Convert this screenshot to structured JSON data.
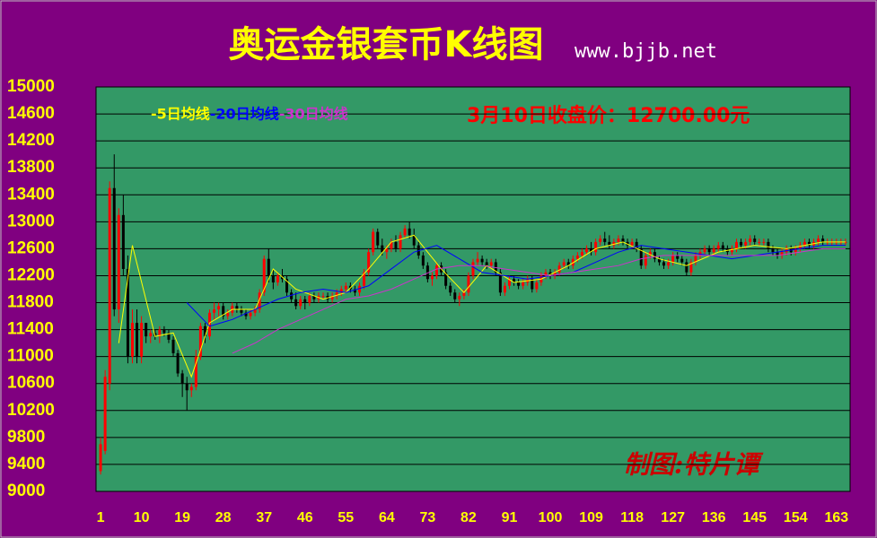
{
  "chart_data": {
    "type": "candlestick",
    "title": "奥运金银套币K线图",
    "subtitle": "www.bjjb.net",
    "annotation": "3月10日收盘价：12700.00元",
    "watermark": "制图:特片谭",
    "ylim": [
      9000,
      15000
    ],
    "yticks": [
      9000,
      9400,
      9800,
      10200,
      10600,
      11000,
      11400,
      11800,
      12200,
      12600,
      13000,
      13400,
      13800,
      14200,
      14600,
      15000
    ],
    "xlim": [
      0,
      166
    ],
    "xticks": [
      1,
      10,
      19,
      28,
      37,
      46,
      55,
      64,
      73,
      82,
      91,
      100,
      109,
      118,
      127,
      136,
      145,
      154,
      163
    ],
    "grid": true,
    "up_color": "#ff0000",
    "down_color": "#000000",
    "candles": [
      [
        9300,
        9800,
        9250,
        9700
      ],
      [
        9600,
        10800,
        9550,
        10700
      ],
      [
        10600,
        13600,
        10500,
        13500
      ],
      [
        13500,
        14000,
        11600,
        11700
      ],
      [
        11700,
        13200,
        11500,
        13100
      ],
      [
        13100,
        13400,
        12200,
        12300
      ],
      [
        12300,
        12500,
        10900,
        11000
      ],
      [
        11000,
        11700,
        10900,
        11500
      ],
      [
        11500,
        11700,
        10900,
        11000
      ],
      [
        11000,
        11600,
        10900,
        11500
      ],
      [
        11500,
        11500,
        11200,
        11300
      ],
      [
        11300,
        11400,
        11200,
        11350
      ],
      [
        11350,
        11400,
        11250,
        11300
      ],
      [
        11300,
        11450,
        11200,
        11400
      ],
      [
        11400,
        11450,
        11300,
        11350
      ],
      [
        11350,
        11400,
        11200,
        11250
      ],
      [
        11250,
        11300,
        11000,
        11050
      ],
      [
        11050,
        11100,
        10700,
        10750
      ],
      [
        10750,
        10800,
        10400,
        10600
      ],
      [
        10600,
        10700,
        10200,
        10500
      ],
      [
        10500,
        10600,
        10400,
        10550
      ],
      [
        10550,
        11100,
        10500,
        11000
      ],
      [
        11000,
        11500,
        10950,
        11450
      ],
      [
        11450,
        11500,
        11200,
        11300
      ],
      [
        11300,
        11700,
        11250,
        11650
      ],
      [
        11650,
        11800,
        11550,
        11700
      ],
      [
        11700,
        11800,
        11600,
        11750
      ],
      [
        11750,
        11800,
        11550,
        11600
      ],
      [
        11600,
        11700,
        11550,
        11650
      ],
      [
        11650,
        11800,
        11600,
        11750
      ],
      [
        11750,
        11800,
        11650,
        11700
      ],
      [
        11700,
        11750,
        11600,
        11650
      ],
      [
        11650,
        11700,
        11550,
        11600
      ],
      [
        11600,
        11700,
        11550,
        11650
      ],
      [
        11650,
        11750,
        11600,
        11700
      ],
      [
        11700,
        12000,
        11650,
        11950
      ],
      [
        11950,
        12500,
        11900,
        12450
      ],
      [
        12450,
        12600,
        12100,
        12200
      ],
      [
        12200,
        12300,
        12000,
        12100
      ],
      [
        12100,
        12250,
        12050,
        12200
      ],
      [
        12200,
        12300,
        12100,
        12150
      ],
      [
        12150,
        12200,
        11900,
        11950
      ],
      [
        11950,
        12000,
        11800,
        11850
      ],
      [
        11850,
        11950,
        11700,
        11750
      ],
      [
        11750,
        11900,
        11700,
        11850
      ],
      [
        11850,
        11900,
        11700,
        11800
      ],
      [
        11800,
        11950,
        11750,
        11900
      ],
      [
        11900,
        11950,
        11800,
        11850
      ],
      [
        11850,
        11950,
        11800,
        11900
      ],
      [
        11900,
        11950,
        11850,
        11900
      ],
      [
        11900,
        11950,
        11800,
        11850
      ],
      [
        11850,
        11950,
        11800,
        11900
      ],
      [
        11900,
        12000,
        11850,
        11950
      ],
      [
        11950,
        12050,
        11900,
        12000
      ],
      [
        12000,
        12100,
        11950,
        12050
      ],
      [
        12050,
        12100,
        11950,
        12000
      ],
      [
        12000,
        12050,
        11900,
        11950
      ],
      [
        11950,
        12100,
        11900,
        12050
      ],
      [
        12050,
        12300,
        12000,
        12250
      ],
      [
        12250,
        12600,
        12200,
        12550
      ],
      [
        12550,
        12900,
        12500,
        12850
      ],
      [
        12850,
        12900,
        12600,
        12650
      ],
      [
        12650,
        12750,
        12500,
        12550
      ],
      [
        12550,
        12650,
        12450,
        12600
      ],
      [
        12600,
        12750,
        12550,
        12700
      ],
      [
        12700,
        12800,
        12550,
        12600
      ],
      [
        12600,
        12850,
        12550,
        12800
      ],
      [
        12800,
        12950,
        12750,
        12900
      ],
      [
        12900,
        13000,
        12750,
        12800
      ],
      [
        12800,
        12900,
        12600,
        12650
      ],
      [
        12650,
        12700,
        12450,
        12500
      ],
      [
        12500,
        12550,
        12300,
        12350
      ],
      [
        12350,
        12400,
        12100,
        12150
      ],
      [
        12150,
        12250,
        12050,
        12200
      ],
      [
        12200,
        12400,
        12150,
        12350
      ],
      [
        12350,
        12400,
        12200,
        12250
      ],
      [
        12250,
        12300,
        12000,
        12050
      ],
      [
        12050,
        12100,
        11900,
        11950
      ],
      [
        11950,
        12000,
        11800,
        11850
      ],
      [
        11850,
        11950,
        11750,
        11900
      ],
      [
        11900,
        12000,
        11850,
        11950
      ],
      [
        11950,
        12250,
        11900,
        12200
      ],
      [
        12200,
        12450,
        12150,
        12400
      ],
      [
        12400,
        12550,
        12350,
        12450
      ],
      [
        12450,
        12500,
        12350,
        12400
      ],
      [
        12400,
        12450,
        12300,
        12350
      ],
      [
        12350,
        12450,
        12300,
        12400
      ],
      [
        12400,
        12450,
        12200,
        12250
      ],
      [
        12250,
        12300,
        11900,
        11950
      ],
      [
        11950,
        12100,
        11900,
        12050
      ],
      [
        12050,
        12200,
        12000,
        12150
      ],
      [
        12150,
        12200,
        12050,
        12100
      ],
      [
        12100,
        12150,
        12000,
        12050
      ],
      [
        12050,
        12150,
        12000,
        12100
      ],
      [
        12100,
        12200,
        12050,
        12150
      ],
      [
        12150,
        12200,
        11950,
        12000
      ],
      [
        12000,
        12150,
        11950,
        12100
      ],
      [
        12100,
        12250,
        12050,
        12200
      ],
      [
        12200,
        12300,
        12150,
        12250
      ],
      [
        12250,
        12300,
        12150,
        12200
      ],
      [
        12200,
        12300,
        12150,
        12250
      ],
      [
        12250,
        12400,
        12200,
        12350
      ],
      [
        12350,
        12450,
        12300,
        12400
      ],
      [
        12400,
        12450,
        12300,
        12350
      ],
      [
        12350,
        12500,
        12300,
        12450
      ],
      [
        12450,
        12550,
        12400,
        12500
      ],
      [
        12500,
        12600,
        12450,
        12550
      ],
      [
        12550,
        12650,
        12500,
        12600
      ],
      [
        12600,
        12700,
        12500,
        12550
      ],
      [
        12550,
        12750,
        12500,
        12700
      ],
      [
        12700,
        12800,
        12650,
        12750
      ],
      [
        12750,
        12850,
        12650,
        12700
      ],
      [
        12700,
        12800,
        12600,
        12650
      ],
      [
        12650,
        12750,
        12600,
        12700
      ],
      [
        12700,
        12800,
        12650,
        12750
      ],
      [
        12750,
        12800,
        12650,
        12700
      ],
      [
        12700,
        12750,
        12600,
        12650
      ],
      [
        12650,
        12750,
        12600,
        12700
      ],
      [
        12700,
        12750,
        12550,
        12600
      ],
      [
        12600,
        12650,
        12300,
        12350
      ],
      [
        12350,
        12550,
        12300,
        12500
      ],
      [
        12500,
        12600,
        12450,
        12550
      ],
      [
        12550,
        12600,
        12400,
        12450
      ],
      [
        12450,
        12500,
        12350,
        12400
      ],
      [
        12400,
        12450,
        12300,
        12350
      ],
      [
        12350,
        12450,
        12300,
        12400
      ],
      [
        12400,
        12550,
        12350,
        12500
      ],
      [
        12500,
        12550,
        12400,
        12450
      ],
      [
        12450,
        12500,
        12350,
        12400
      ],
      [
        12400,
        12450,
        12200,
        12250
      ],
      [
        12250,
        12450,
        12200,
        12400
      ],
      [
        12400,
        12550,
        12350,
        12500
      ],
      [
        12500,
        12600,
        12450,
        12550
      ],
      [
        12550,
        12650,
        12500,
        12600
      ],
      [
        12600,
        12650,
        12500,
        12550
      ],
      [
        12550,
        12650,
        12500,
        12600
      ],
      [
        12600,
        12700,
        12550,
        12650
      ],
      [
        12650,
        12700,
        12550,
        12600
      ],
      [
        12600,
        12650,
        12500,
        12550
      ],
      [
        12550,
        12650,
        12500,
        12600
      ],
      [
        12600,
        12750,
        12550,
        12700
      ],
      [
        12700,
        12750,
        12600,
        12650
      ],
      [
        12650,
        12750,
        12600,
        12700
      ],
      [
        12700,
        12800,
        12650,
        12750
      ],
      [
        12750,
        12800,
        12650,
        12700
      ],
      [
        12700,
        12750,
        12650,
        12700
      ],
      [
        12700,
        12750,
        12650,
        12700
      ],
      [
        12700,
        12750,
        12550,
        12600
      ],
      [
        12600,
        12650,
        12500,
        12550
      ],
      [
        12550,
        12600,
        12450,
        12500
      ],
      [
        12500,
        12600,
        12450,
        12550
      ],
      [
        12550,
        12650,
        12500,
        12600
      ],
      [
        12600,
        12650,
        12500,
        12550
      ],
      [
        12550,
        12650,
        12500,
        12600
      ],
      [
        12600,
        12700,
        12550,
        12650
      ],
      [
        12650,
        12750,
        12600,
        12700
      ],
      [
        12700,
        12750,
        12600,
        12650
      ],
      [
        12650,
        12750,
        12600,
        12700
      ],
      [
        12700,
        12800,
        12650,
        12750
      ],
      [
        12750,
        12800,
        12650,
        12700
      ],
      [
        12700,
        12750,
        12650,
        12700
      ],
      [
        12700,
        12750,
        12650,
        12700
      ],
      [
        12700,
        12750,
        12650,
        12700
      ],
      [
        12700,
        12750,
        12650,
        12700
      ],
      [
        12700,
        12750,
        12650,
        12700
      ]
    ],
    "series": [
      {
        "name": "-5日均线",
        "color": "#ffff00",
        "x": [
          5,
          8,
          13,
          17,
          21,
          25,
          30,
          35,
          39,
          44,
          50,
          55,
          60,
          65,
          70,
          76,
          81,
          86,
          92,
          98,
          104,
          110,
          116,
          124,
          130,
          137,
          145,
          152,
          160,
          165
        ],
        "values": [
          11200,
          12650,
          11300,
          11350,
          10700,
          11500,
          11700,
          11700,
          12300,
          12000,
          11850,
          11950,
          12300,
          12700,
          12800,
          12300,
          11950,
          12350,
          12100,
          12150,
          12350,
          12600,
          12700,
          12450,
          12350,
          12550,
          12650,
          12600,
          12700,
          12700
        ]
      },
      {
        "name": "-20日均线",
        "color": "#0000ff",
        "x": [
          20,
          25,
          30,
          35,
          40,
          45,
          50,
          55,
          60,
          65,
          70,
          75,
          80,
          85,
          90,
          95,
          100,
          105,
          110,
          115,
          120,
          125,
          130,
          135,
          140,
          145,
          150,
          155,
          160,
          165
        ],
        "values": [
          11800,
          11450,
          11550,
          11700,
          11850,
          11950,
          12000,
          11950,
          12050,
          12300,
          12550,
          12650,
          12450,
          12250,
          12200,
          12150,
          12200,
          12250,
          12400,
          12550,
          12650,
          12600,
          12550,
          12500,
          12450,
          12500,
          12550,
          12600,
          12650,
          12650
        ]
      },
      {
        "name": "-30日均线",
        "color": "#cc33cc",
        "x": [
          30,
          35,
          40,
          45,
          50,
          55,
          60,
          65,
          70,
          75,
          80,
          85,
          90,
          95,
          100,
          105,
          110,
          115,
          120,
          125,
          130,
          135,
          140,
          145,
          150,
          155,
          160,
          165
        ],
        "values": [
          11050,
          11200,
          11400,
          11550,
          11700,
          11850,
          11900,
          12000,
          12150,
          12300,
          12350,
          12350,
          12300,
          12250,
          12200,
          12250,
          12300,
          12350,
          12450,
          12500,
          12500,
          12500,
          12500,
          12500,
          12500,
          12550,
          12600,
          12600
        ]
      }
    ]
  }
}
